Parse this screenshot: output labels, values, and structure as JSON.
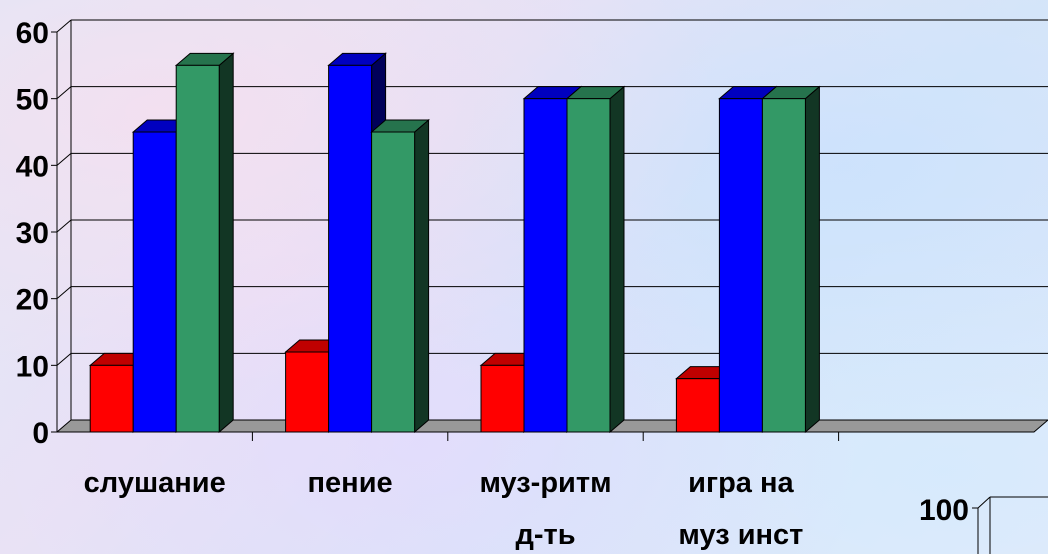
{
  "chart_data": [
    {
      "type": "bar",
      "title": "",
      "xlabel": "",
      "ylabel": "",
      "ylim": [
        0,
        60
      ],
      "yticks": [
        0,
        10,
        20,
        30,
        40,
        50,
        60
      ],
      "grid": true,
      "legend": "none",
      "categories": [
        [
          "слушание"
        ],
        [
          "пение"
        ],
        [
          "муз-ритм",
          "д-ть"
        ],
        [
          "игра на",
          "муз инст"
        ],
        [
          ""
        ]
      ],
      "series": [
        {
          "color": "#ff0000",
          "values": [
            10,
            12,
            10,
            8,
            null
          ]
        },
        {
          "color": "#0000ff",
          "values": [
            45,
            55,
            50,
            50,
            null
          ]
        },
        {
          "color": "#339966",
          "values": [
            55,
            45,
            50,
            50,
            null
          ]
        }
      ]
    },
    {
      "type": "bar",
      "partially_visible": true,
      "yticks": [
        100
      ],
      "series": []
    }
  ]
}
